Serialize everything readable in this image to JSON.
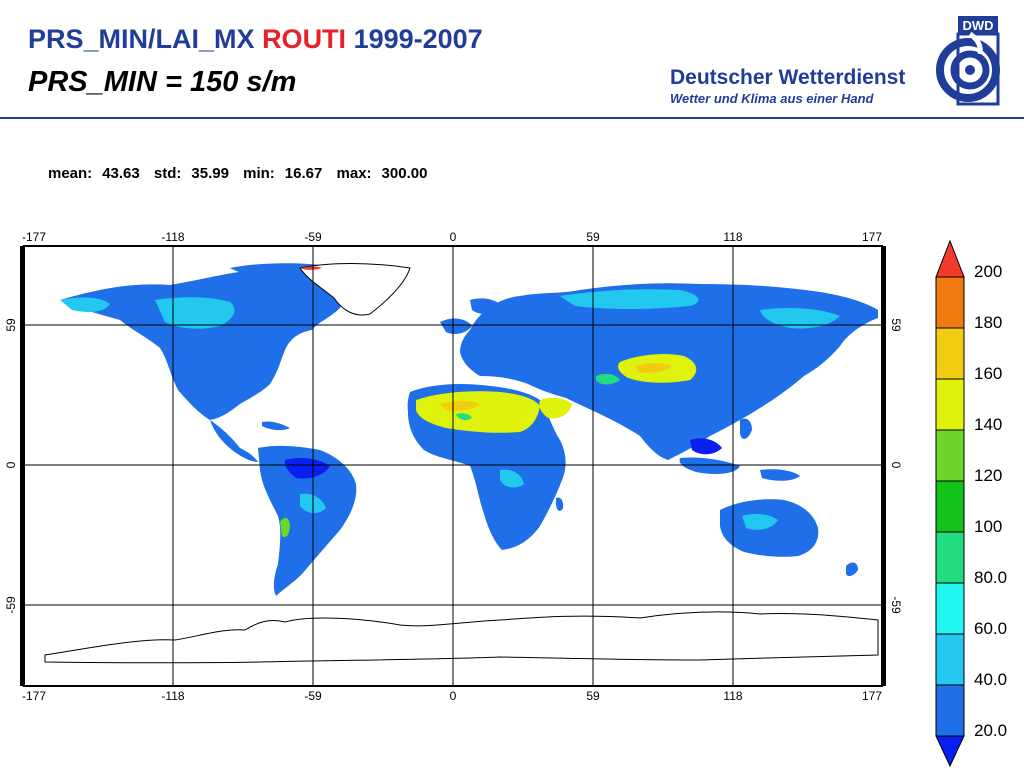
{
  "header": {
    "title_prefix": "PRS_MIN/LAI_MX",
    "title_highlight": "ROUTI",
    "title_years": "1999-2007",
    "subtitle": "PRS_MIN = 150 s/m"
  },
  "logo": {
    "badge": "DWD",
    "name": "Deutscher Wetterdienst",
    "tagline": "Wetter und Klima aus einer Hand",
    "color": "#1f3d99"
  },
  "stats": {
    "mean_label": "mean:",
    "mean": "43.63",
    "std_label": "std:",
    "std": "35.99",
    "min_label": "min:",
    "min": "16.67",
    "max_label": "max:",
    "max": "300.00"
  },
  "map": {
    "lon_ticks": [
      "-177",
      "-118",
      "-59",
      "0",
      "59",
      "118",
      "177"
    ],
    "lat_ticks": [
      "59",
      "0",
      "-59"
    ],
    "land_default_color": "#1e6fe8"
  },
  "colorbar": {
    "labels": [
      "200",
      "180",
      "160",
      "140",
      "120",
      "100",
      "80.0",
      "60.0",
      "40.0",
      "20.0"
    ],
    "colors": [
      "#f23b2b",
      "#f07a10",
      "#f2cc10",
      "#dff20c",
      "#6ed62a",
      "#10c21a",
      "#22dd80",
      "#24f6f3",
      "#22c8f0",
      "#1e6fe8",
      "#0a1ef0"
    ]
  }
}
